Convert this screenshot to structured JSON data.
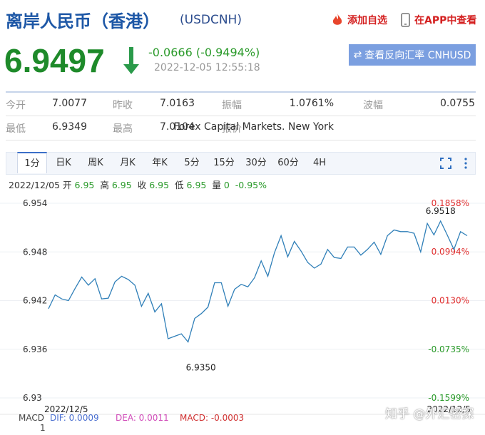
{
  "header": {
    "title": "离岸人民币（香港）",
    "code": "(USDCNH)",
    "actions": [
      "添加自选",
      "在APP中查看"
    ]
  },
  "quote": {
    "price": "6.9497",
    "change": "-0.0666 (-0.9494%)",
    "time": "2022-12-05 12:55:18",
    "button": "查看反向汇率 CNHUSD"
  },
  "stats": {
    "rows": [
      [
        "今开",
        "7.0077",
        "昨收",
        "7.0163",
        "振幅",
        "1.0761%",
        "波幅",
        "0.0755"
      ],
      [
        "最低",
        "6.9349",
        "最高",
        "7.0104",
        "报价",
        "Forex Capital Markets. New York"
      ]
    ]
  },
  "tabs": [
    "1分",
    "日K",
    "周K",
    "月K",
    "年K",
    "5分",
    "15分",
    "30分",
    "60分",
    "4H"
  ],
  "info": {
    "date": "2022/12/05",
    "fields": [
      [
        "开",
        "6.95"
      ],
      [
        "高",
        "6.95"
      ],
      [
        "收",
        "6.95"
      ],
      [
        "低",
        "6.95"
      ],
      [
        "量",
        "0"
      ]
    ],
    "change": "-0.95%"
  },
  "chart_data": {
    "type": "line",
    "categories": [
      "2022/12/5",
      null,
      null,
      null,
      null,
      null,
      null,
      null,
      null,
      null,
      null,
      null,
      null,
      null,
      null,
      null,
      null,
      null,
      null,
      null,
      null,
      null,
      null,
      null,
      null,
      null,
      null,
      null,
      null,
      null,
      null,
      null,
      null,
      null,
      null,
      null,
      null,
      null,
      null,
      null,
      null,
      null,
      null,
      null,
      null,
      null,
      null,
      null,
      null,
      null,
      null,
      null,
      null,
      null,
      null,
      null,
      null,
      null,
      null,
      null,
      null,
      null,
      null,
      "2022/12/5"
    ],
    "series": [
      {
        "color": "#2f7fb8",
        "values": [
          6.941,
          6.9427,
          6.9422,
          6.942,
          6.9435,
          6.9449,
          6.9439,
          6.9447,
          6.9422,
          6.9423,
          6.9443,
          6.945,
          6.9446,
          6.9439,
          6.9413,
          6.9429,
          6.9406,
          6.9416,
          6.9373,
          6.9376,
          6.9379,
          6.9369,
          6.9398,
          6.9404,
          6.9412,
          6.9442,
          6.9442,
          6.9413,
          6.9434,
          6.944,
          6.9437,
          6.9448,
          6.9469,
          6.945,
          6.9479,
          6.95,
          6.9474,
          6.9493,
          6.9481,
          6.9467,
          6.946,
          6.9465,
          6.9483,
          6.9473,
          6.9472,
          6.9486,
          6.9486,
          6.9476,
          6.9483,
          6.9492,
          6.9477,
          6.95,
          6.9507,
          6.9505,
          6.9505,
          6.9503,
          6.948,
          6.9515,
          6.9501,
          6.9518,
          6.9501,
          6.9483,
          6.9505,
          6.95
        ]
      }
    ],
    "ylim": [
      6.93,
      6.954
    ],
    "yticks": [
      6.954,
      6.948,
      6.942,
      6.936,
      6.93
    ],
    "y2lim": [
      -0.1599,
      0.1858
    ],
    "y2ticks": [
      {
        "value": 0.1858,
        "label": "0.1858%"
      },
      {
        "value": 0.0994,
        "label": "0.0994%"
      },
      {
        "value": 0.013,
        "label": "0.0130%"
      },
      {
        "value": -0.0735,
        "label": "-0.0735%"
      },
      {
        "value": -0.1599,
        "label": "-0.1599%"
      }
    ],
    "up_color": "#e03030",
    "down_color": "#2a9a2a",
    "grid": true,
    "annotations": {
      "high": 6.9518,
      "low": {
        "value": 6.935,
        "label": "6.9350"
      }
    }
  },
  "macd": {
    "label": "MACD",
    "items": [
      [
        "DIF: 0.0009",
        "#4a6fd0"
      ],
      [
        "DEA: 0.0011",
        "#d04ab8"
      ],
      [
        "MACD: -0.0003",
        "#d03030"
      ]
    ],
    "axis": "1"
  },
  "watermark": "知乎 @外汇密探"
}
